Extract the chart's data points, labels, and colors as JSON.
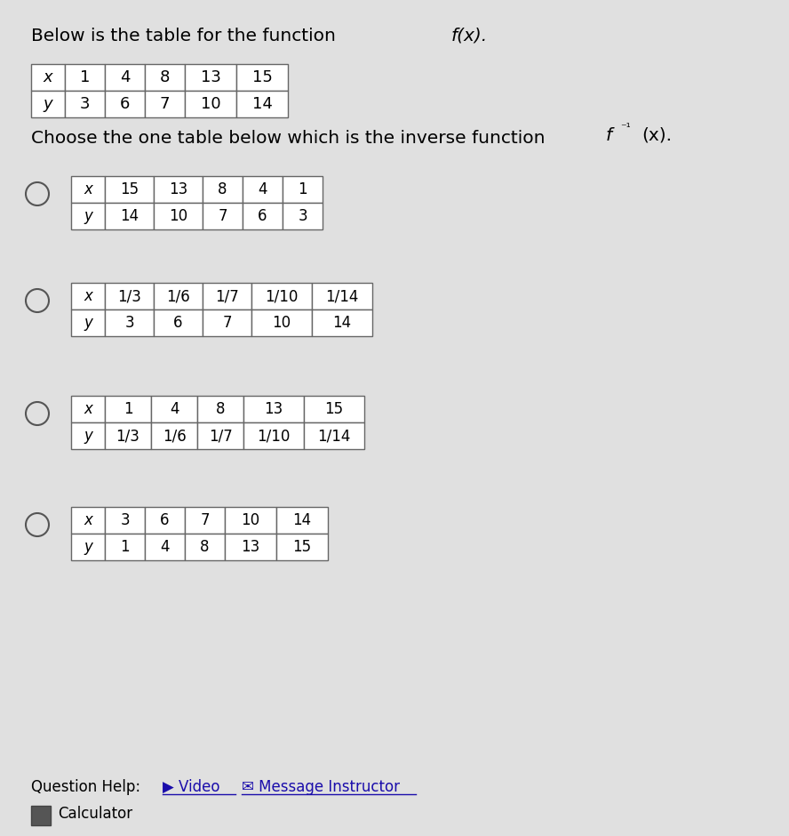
{
  "bg_color": "#e0e0e0",
  "title_text": "Below is the table for the function ",
  "title_fx": "f(x).",
  "subtitle_text": "Choose the one table below which is the inverse function ",
  "subtitle_inv": "f ⁻¹(x).",
  "main_table": {
    "headers": [
      "x",
      "1",
      "4",
      "8",
      "13",
      "15"
    ],
    "row2": [
      "y",
      "3",
      "6",
      "7",
      "10",
      "14"
    ]
  },
  "option1": {
    "headers": [
      "x",
      "15",
      "13",
      "8",
      "4",
      "1"
    ],
    "row2": [
      "y",
      "14",
      "10",
      "7",
      "6",
      "3"
    ]
  },
  "option2": {
    "headers": [
      "x",
      "1/3",
      "1/6",
      "1/7",
      "1/10",
      "1/14"
    ],
    "row2": [
      "y",
      "3",
      "6",
      "7",
      "10",
      "14"
    ]
  },
  "option3": {
    "headers": [
      "x",
      "1",
      "4",
      "8",
      "13",
      "15"
    ],
    "row2": [
      "y",
      "1/3",
      "1/6",
      "1/7",
      "1/10",
      "1/14"
    ]
  },
  "option4": {
    "headers": [
      "x",
      "3",
      "6",
      "7",
      "10",
      "14"
    ],
    "row2": [
      "y",
      "1",
      "4",
      "8",
      "13",
      "15"
    ]
  },
  "footer_text": "Question Help:",
  "footer_video": "▶ Video",
  "footer_msg": "✉ Message Instructor",
  "footer_calc": "Calculator"
}
